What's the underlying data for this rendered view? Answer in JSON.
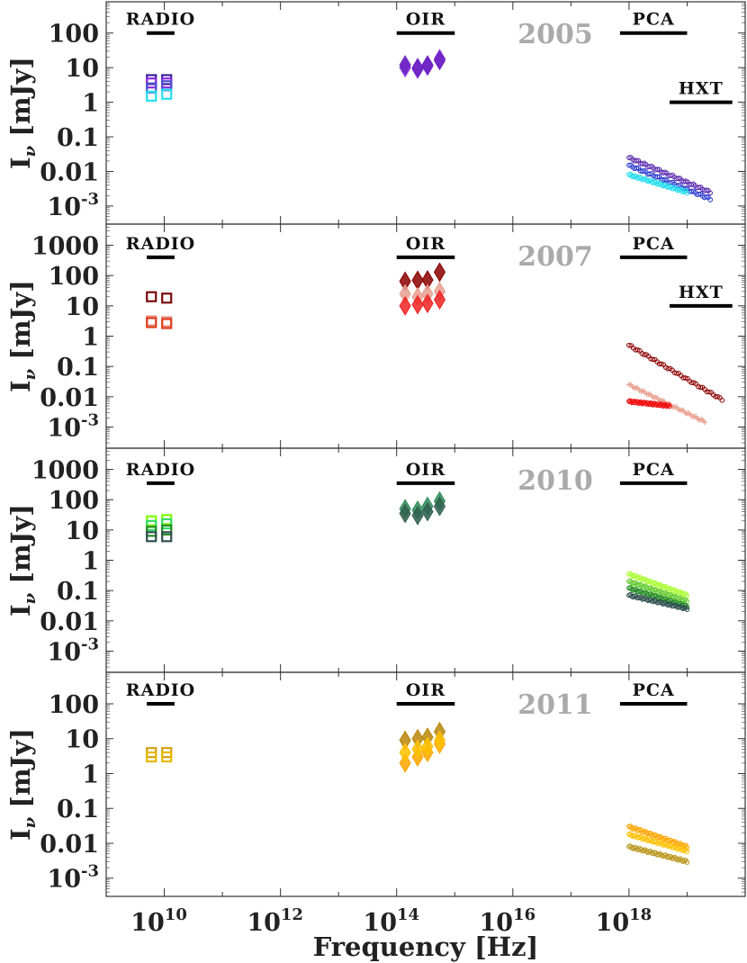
{
  "chart_data": {
    "type": "scatter",
    "scale": {
      "x": "log",
      "y": "log"
    },
    "xlabel": "Frequency [Hz]",
    "ylabel": "I",
    "ylabel_sub": "ν",
    "ylabel_unit": "[mJy]",
    "xlim": [
      1000000000.0,
      1e+20
    ],
    "x_ticks": [
      {
        "base": "10",
        "exp": "10",
        "value": 10000000000.0
      },
      {
        "base": "10",
        "exp": "12",
        "value": 1000000000000.0
      },
      {
        "base": "10",
        "exp": "14",
        "value": 100000000000000.0
      },
      {
        "base": "10",
        "exp": "16",
        "value": 1e+16
      },
      {
        "base": "10",
        "exp": "18",
        "value": 1e+18
      }
    ],
    "panels": [
      {
        "year": "2005",
        "ylim": [
          0.0003,
          800
        ],
        "y_ticks": [
          {
            "text": "100",
            "value": 100
          },
          {
            "text": "10",
            "value": 10
          },
          {
            "text": "1",
            "value": 1
          },
          {
            "text": "0.1",
            "value": 0.1
          },
          {
            "text": "0.01",
            "value": 0.01
          },
          {
            "base": "10",
            "exp": "-3",
            "value": 0.001
          }
        ],
        "bands": [
          {
            "label": "RADIO",
            "x1": 5000000000.0,
            "x2": 15000000000.0,
            "y": 100
          },
          {
            "label": "OIR",
            "x1": 100000000000000.0,
            "x2": 1000000000000000.0,
            "y": 100
          },
          {
            "label": "PCA",
            "x1": 7e+17,
            "x2": 1e+19,
            "y": 100
          },
          {
            "label": "HXT",
            "x1": 5e+18,
            "x2": 6e+19,
            "y": 1
          }
        ],
        "radio": [
          {
            "color": "#3c1ea0",
            "values": [
              4.5,
              4.5
            ]
          },
          {
            "color": "#8a2be2",
            "values": [
              3.6,
              3.6
            ]
          },
          {
            "color": "#5050d0",
            "values": [
              2.6,
              3.0
            ]
          },
          {
            "color": "#22e0f0",
            "values": [
              1.5,
              1.7
            ]
          }
        ],
        "oir": [
          {
            "color": "#8a2be2",
            "values": [
              10,
              9,
              11,
              18
            ]
          },
          {
            "color": "#6a22c0",
            "values": [
              12,
              10,
              12,
              16
            ]
          }
        ],
        "xray": [
          {
            "color": "#5522aa",
            "f1": 1e+18,
            "v1": 0.025,
            "f2": 2.5e+19,
            "v2": 0.0025,
            "marker": "circle"
          },
          {
            "color": "#2233cc",
            "f1": 1e+18,
            "v1": 0.015,
            "f2": 2.5e+19,
            "v2": 0.0016,
            "marker": "circle"
          },
          {
            "color": "#22ddee",
            "f1": 1e+18,
            "v1": 0.008,
            "f2": 1e+19,
            "v2": 0.0025,
            "marker": "circle"
          }
        ]
      },
      {
        "year": "2007",
        "ylim": [
          0.0002,
          5000
        ],
        "y_ticks": [
          {
            "text": "1000",
            "value": 1000
          },
          {
            "text": "100",
            "value": 100
          },
          {
            "text": "10",
            "value": 10
          },
          {
            "text": "1",
            "value": 1
          },
          {
            "text": "0.1",
            "value": 0.1
          },
          {
            "text": "0.01",
            "value": 0.01
          },
          {
            "base": "10",
            "exp": "-3",
            "value": 0.001
          }
        ],
        "bands": [
          {
            "label": "RADIO",
            "x1": 5000000000.0,
            "x2": 15000000000.0,
            "y": 400
          },
          {
            "label": "OIR",
            "x1": 100000000000000.0,
            "x2": 1000000000000000.0,
            "y": 400
          },
          {
            "label": "PCA",
            "x1": 7e+17,
            "x2": 1e+19,
            "y": 400
          },
          {
            "label": "HXT",
            "x1": 5e+18,
            "x2": 6e+19,
            "y": 10
          }
        ],
        "radio": [
          {
            "color": "#7a0a0a",
            "values": [
              20,
              18
            ]
          },
          {
            "color": "#e89080",
            "values": [
              3.2,
              3.0
            ]
          },
          {
            "color": "#e04020",
            "values": [
              2.8,
              2.6
            ]
          }
        ],
        "oir": [
          {
            "color": "#8b0000",
            "values": [
              65,
              70,
              72,
              130
            ]
          },
          {
            "color": "#e8a090",
            "values": [
              25,
              20,
              25,
              30
            ]
          },
          {
            "color": "#ee2222",
            "values": [
              10,
              11,
              12,
              16
            ]
          }
        ],
        "xray": [
          {
            "color": "#8b0000",
            "f1": 1e+18,
            "v1": 0.5,
            "f2": 4e+19,
            "v2": 0.008,
            "marker": "circle"
          },
          {
            "color": "#e8a090",
            "f1": 1e+18,
            "v1": 0.025,
            "f2": 2e+19,
            "v2": 0.0015,
            "marker": "plus"
          },
          {
            "color": "#ee1111",
            "f1": 1e+18,
            "v1": 0.007,
            "f2": 5e+18,
            "v2": 0.005,
            "marker": "circle"
          }
        ]
      },
      {
        "year": "2010",
        "ylim": [
          0.0002,
          5000
        ],
        "y_ticks": [
          {
            "text": "1000",
            "value": 1000
          },
          {
            "text": "100",
            "value": 100
          },
          {
            "text": "10",
            "value": 10
          },
          {
            "text": "1",
            "value": 1
          },
          {
            "text": "0.1",
            "value": 0.1
          },
          {
            "text": "0.01",
            "value": 0.01
          },
          {
            "base": "10",
            "exp": "-3",
            "value": 0.001
          }
        ],
        "bands": [
          {
            "label": "RADIO",
            "x1": 5000000000.0,
            "x2": 15000000000.0,
            "y": 350
          },
          {
            "label": "OIR",
            "x1": 100000000000000.0,
            "x2": 1000000000000000.0,
            "y": 350
          },
          {
            "label": "PCA",
            "x1": 7e+17,
            "x2": 1e+19,
            "y": 350
          }
        ],
        "radio": [
          {
            "color": "#7cfc00",
            "values": [
              20,
              22
            ]
          },
          {
            "color": "#33dd66",
            "values": [
              14,
              16
            ]
          },
          {
            "color": "#228b22",
            "values": [
              9,
              10
            ]
          },
          {
            "color": "#2f4f4f",
            "values": [
              6,
              6
            ]
          }
        ],
        "oir": [
          {
            "color": "#2e8b57",
            "values": [
              50,
              45,
              60,
              90
            ]
          },
          {
            "color": "#2f5f4f",
            "values": [
              35,
              30,
              40,
              60
            ]
          }
        ],
        "xray": [
          {
            "color": "#aaff33",
            "f1": 1e+18,
            "v1": 0.35,
            "f2": 1e+19,
            "v2": 0.07,
            "marker": "circle"
          },
          {
            "color": "#66cc33",
            "f1": 1e+18,
            "v1": 0.2,
            "f2": 1e+19,
            "v2": 0.045,
            "marker": "circle"
          },
          {
            "color": "#228b22",
            "f1": 1e+18,
            "v1": 0.12,
            "f2": 1e+19,
            "v2": 0.03,
            "marker": "circle"
          },
          {
            "color": "#2f4f4f",
            "f1": 1e+18,
            "v1": 0.07,
            "f2": 1e+19,
            "v2": 0.025,
            "marker": "circle"
          }
        ]
      },
      {
        "year": "2011",
        "ylim": [
          0.0003,
          800
        ],
        "y_ticks": [
          {
            "text": "100",
            "value": 100
          },
          {
            "text": "10",
            "value": 10
          },
          {
            "text": "1",
            "value": 1
          },
          {
            "text": "0.1",
            "value": 0.1
          },
          {
            "text": "0.01",
            "value": 0.01
          },
          {
            "base": "10",
            "exp": "-3",
            "value": 0.001
          }
        ],
        "bands": [
          {
            "label": "RADIO",
            "x1": 5000000000.0,
            "x2": 15000000000.0,
            "y": 100
          },
          {
            "label": "OIR",
            "x1": 100000000000000.0,
            "x2": 1000000000000000.0,
            "y": 100
          },
          {
            "label": "PCA",
            "x1": 7e+17,
            "x2": 1e+19,
            "y": 100
          }
        ],
        "radio": [
          {
            "color": "#d4a017",
            "values": [
              4.0,
              4.0
            ]
          },
          {
            "color": "#e8b800",
            "values": [
              3.0,
              3.0
            ]
          }
        ],
        "oir": [
          {
            "color": "#b8860b",
            "values": [
              9,
              10,
              11,
              16
            ]
          },
          {
            "color": "#ffa500",
            "values": [
              2,
              3,
              4,
              7
            ]
          },
          {
            "color": "#ffc000",
            "values": [
              4,
              5,
              6,
              9
            ]
          }
        ],
        "xray": [
          {
            "color": "#ffa500",
            "f1": 1e+18,
            "v1": 0.03,
            "f2": 1e+19,
            "v2": 0.008,
            "marker": "circle"
          },
          {
            "color": "#ffc000",
            "f1": 1e+18,
            "v1": 0.018,
            "f2": 1e+19,
            "v2": 0.006,
            "marker": "circle"
          },
          {
            "color": "#b8961b",
            "f1": 1e+18,
            "v1": 0.008,
            "f2": 1e+19,
            "v2": 0.003,
            "marker": "circle"
          }
        ]
      }
    ]
  }
}
